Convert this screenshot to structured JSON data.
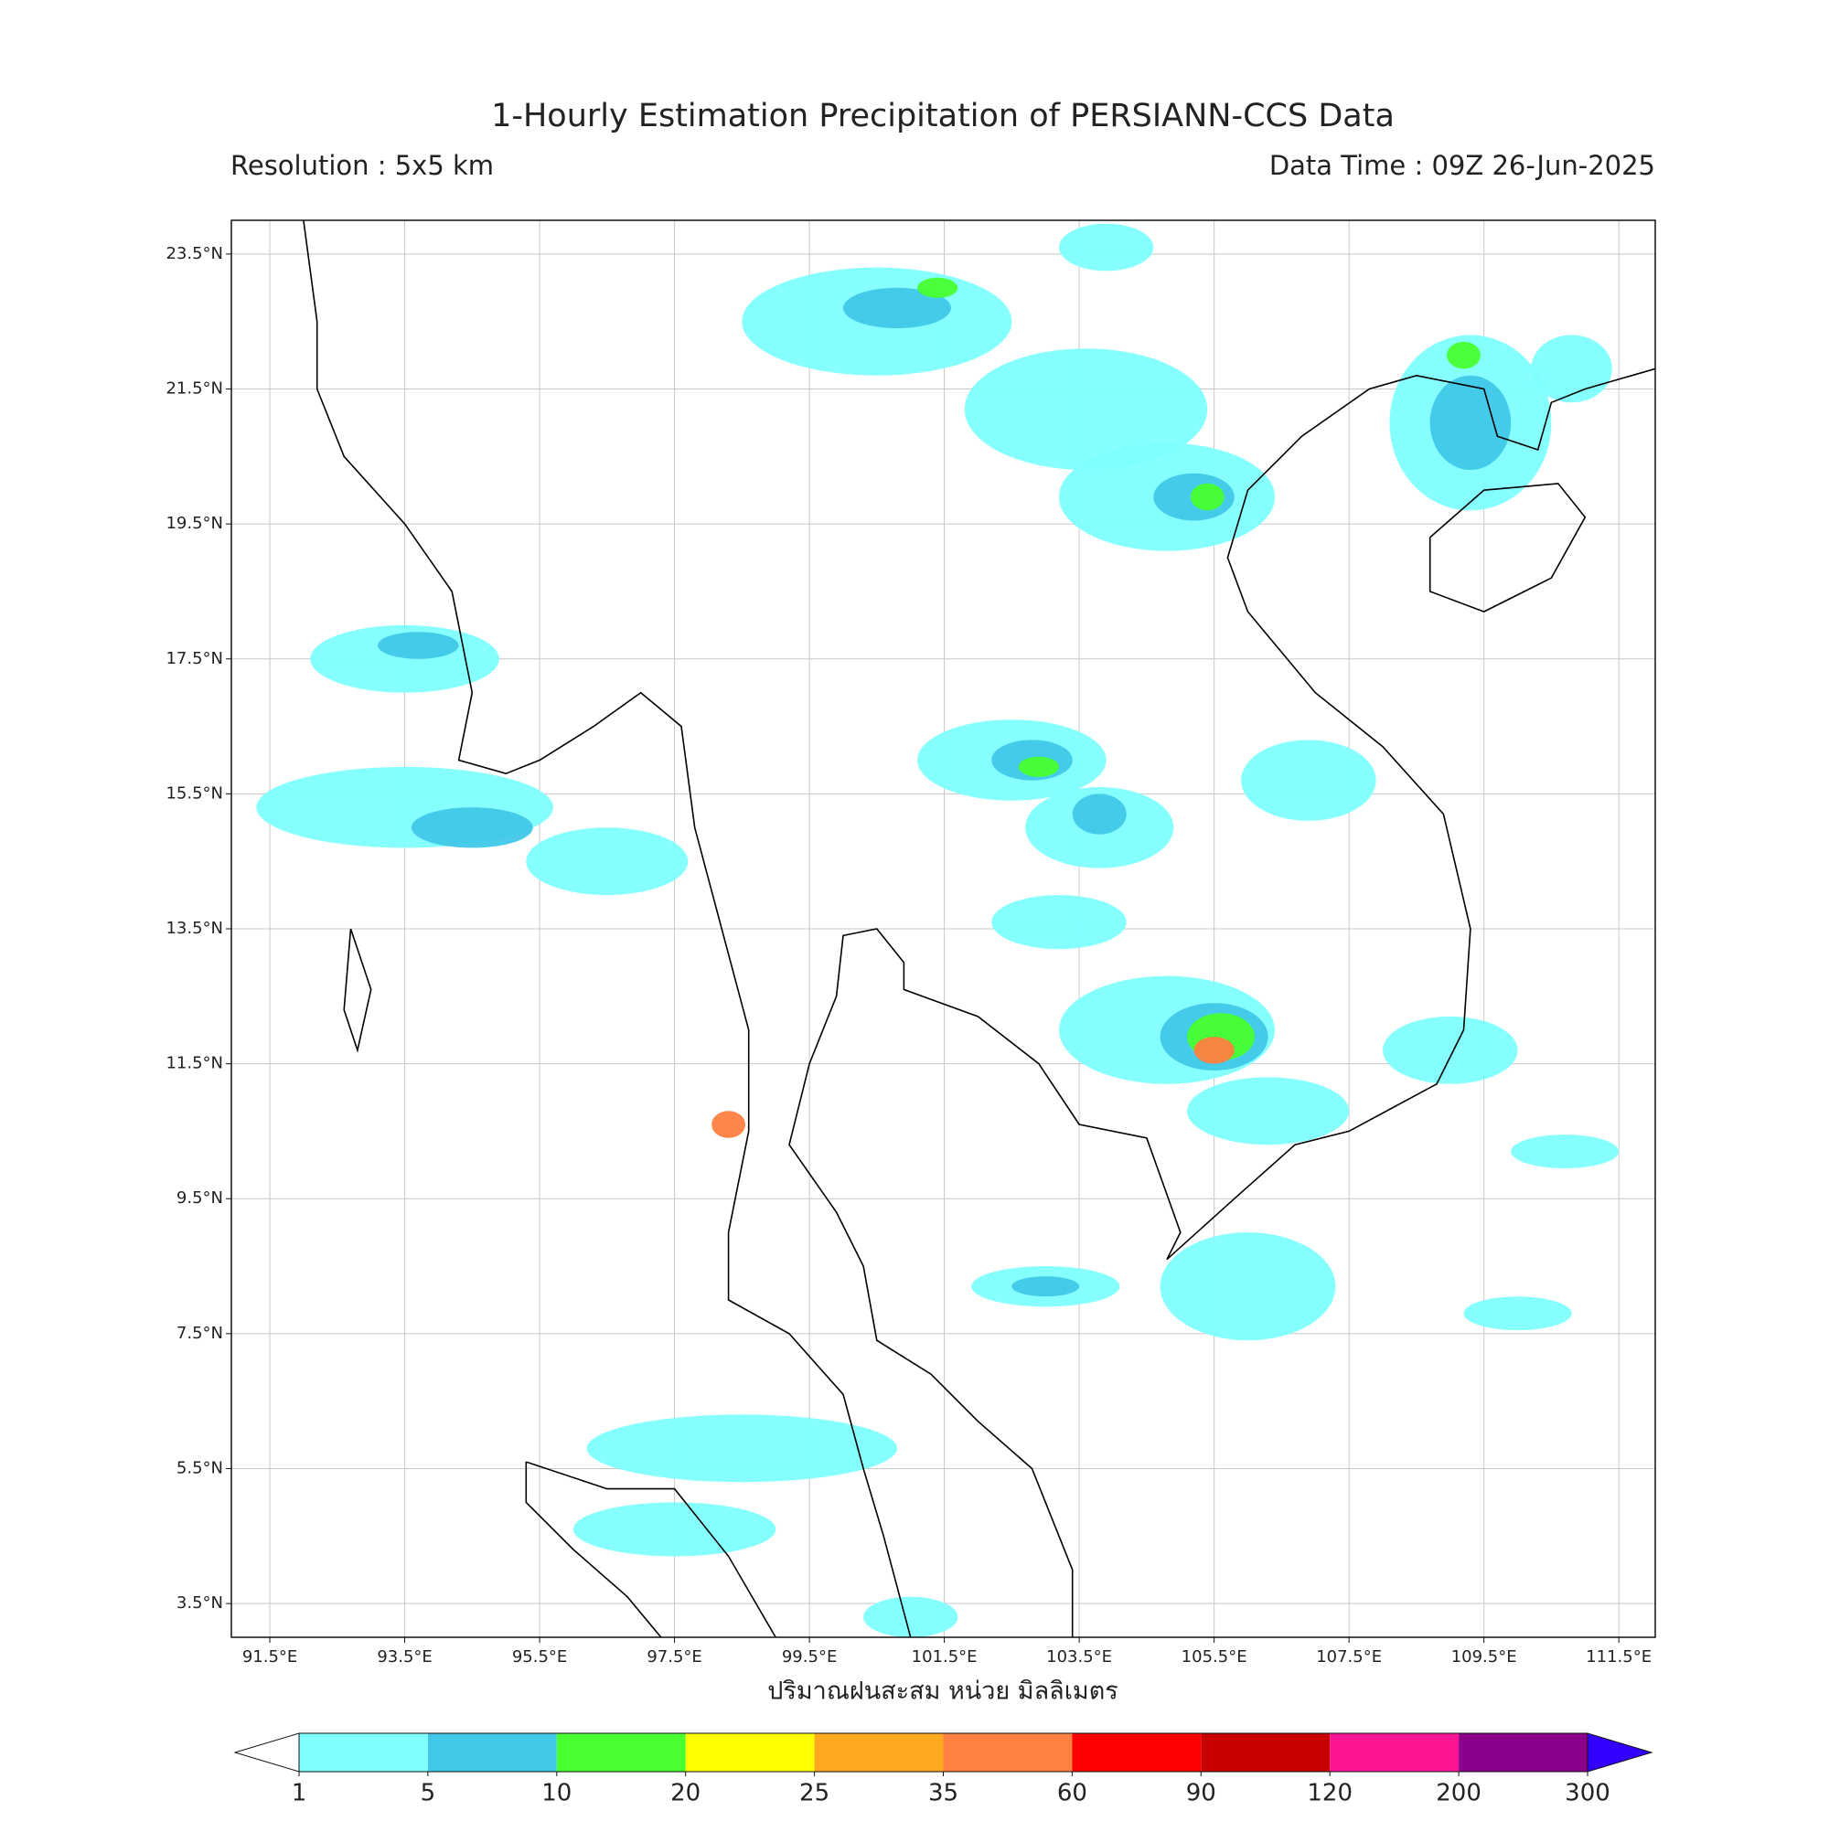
{
  "map": {
    "title": "1-Hourly Estimation Precipitation of PERSIANN-CCS Data",
    "resolution": "Resolution : 5x5 km",
    "data_time": "Data Time : 09Z 26-Jun-2025",
    "xlabel": "ปริมาณฝนสะสม หน่วย มิลลิเมตร",
    "xlim": [
      90.93,
      112.04
    ],
    "ylim": [
      3.0,
      24.0
    ],
    "xticks": [
      {
        "value": 91.5,
        "label": "91.5°E"
      },
      {
        "value": 93.5,
        "label": "93.5°E"
      },
      {
        "value": 95.5,
        "label": "95.5°E"
      },
      {
        "value": 97.5,
        "label": "97.5°E"
      },
      {
        "value": 99.5,
        "label": "99.5°E"
      },
      {
        "value": 101.5,
        "label": "101.5°E"
      },
      {
        "value": 103.5,
        "label": "103.5°E"
      },
      {
        "value": 105.5,
        "label": "105.5°E"
      },
      {
        "value": 107.5,
        "label": "107.5°E"
      },
      {
        "value": 109.5,
        "label": "109.5°E"
      },
      {
        "value": 111.5,
        "label": "111.5°E"
      }
    ],
    "yticks": [
      {
        "value": 3.5,
        "label": "3.5°N"
      },
      {
        "value": 5.5,
        "label": "5.5°N"
      },
      {
        "value": 7.5,
        "label": "7.5°N"
      },
      {
        "value": 9.5,
        "label": "9.5°N"
      },
      {
        "value": 11.5,
        "label": "11.5°N"
      },
      {
        "value": 13.5,
        "label": "13.5°N"
      },
      {
        "value": 15.5,
        "label": "15.5°N"
      },
      {
        "value": 17.5,
        "label": "17.5°N"
      },
      {
        "value": 19.5,
        "label": "19.5°N"
      },
      {
        "value": 21.5,
        "label": "21.5°N"
      },
      {
        "value": 23.5,
        "label": "23.5°N"
      }
    ],
    "grid": true,
    "colorbar": {
      "boundaries": [
        1,
        5,
        10,
        20,
        25,
        35,
        60,
        90,
        120,
        200,
        300
      ],
      "colors": [
        "#80ffff",
        "#40c8e8",
        "#48ff30",
        "#ffff00",
        "#ffa820",
        "#ff8040",
        "#ff0000",
        "#c80000",
        "#ff1493",
        "#8b008b"
      ],
      "under_color": "#ffffff",
      "over_color": "#3300ff"
    }
  }
}
